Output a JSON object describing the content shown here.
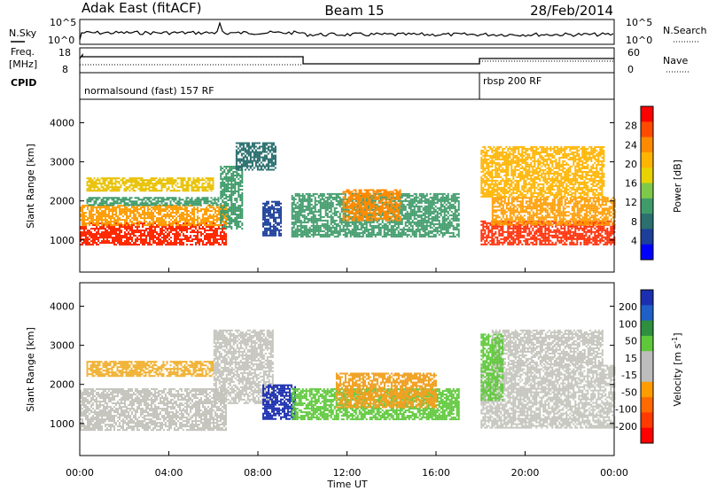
{
  "header": {
    "station": "Adak East (fitACF)",
    "beam": "Beam 15",
    "date": "28/Feb/2014"
  },
  "noise_panel": {
    "left_label": "N.Sky",
    "right_label": "N.Search",
    "tick_top": "10^5",
    "tick_bottom": "10^0"
  },
  "freq_panel": {
    "left_label_line1": "Freq.",
    "left_label_line2": "[MHz]",
    "left_tick_top": "18",
    "left_tick_bottom": "8",
    "right_label": "Nave",
    "right_tick_top": "60",
    "right_tick_bottom": "0"
  },
  "cpid_panel": {
    "label": "CPID",
    "modes": [
      {
        "start_h": 0,
        "end_h": 18,
        "text": "normalsound (fast) 157 RF"
      },
      {
        "start_h": 18,
        "end_h": 24,
        "text": "rbsp 200 RF"
      }
    ]
  },
  "chart_data": [
    {
      "type": "heatmap",
      "name": "power-panel",
      "xlabel": "",
      "ylabel": "Slant Range [km]",
      "xlim_hours": [
        0,
        24
      ],
      "ylim": [
        180,
        4600
      ],
      "yticks": [
        1000,
        2000,
        3000,
        4000
      ],
      "colorbar": {
        "label": "Power [dB]",
        "ticks": [
          "28",
          "24",
          "20",
          "16",
          "12",
          "8",
          "4"
        ],
        "colors": [
          "#ff0000",
          "#ff4a00",
          "#ff8a00",
          "#ffb400",
          "#e8d200",
          "#7fc94a",
          "#3f9b6a",
          "#2b6f6f",
          "#1c3f9a",
          "#0000ff"
        ]
      },
      "regions": [
        {
          "t0": 0.0,
          "t1": 6.6,
          "r0": 900,
          "r1": 1450,
          "color": "#ff2a00"
        },
        {
          "t0": 0.0,
          "t1": 6.6,
          "r0": 1400,
          "r1": 1900,
          "color": "#ff9c00"
        },
        {
          "t0": 0.3,
          "t1": 6.2,
          "r0": 1900,
          "r1": 2100,
          "color": "#3f9b6a"
        },
        {
          "t0": 0.3,
          "t1": 6.0,
          "r0": 2250,
          "r1": 2600,
          "color": "#e8c000"
        },
        {
          "t0": 6.3,
          "t1": 7.3,
          "r0": 1300,
          "r1": 2900,
          "color": "#3f9b6a"
        },
        {
          "t0": 7.0,
          "t1": 8.8,
          "r0": 2800,
          "r1": 3500,
          "color": "#2b6f6f"
        },
        {
          "t0": 8.2,
          "t1": 9.0,
          "r0": 1100,
          "r1": 2000,
          "color": "#1c3f9a"
        },
        {
          "t0": 9.5,
          "t1": 17.0,
          "r0": 1100,
          "r1": 2200,
          "color": "#3f9b6a"
        },
        {
          "t0": 11.8,
          "t1": 14.4,
          "r0": 1500,
          "r1": 2300,
          "color": "#ff8a00"
        },
        {
          "t0": 18.0,
          "t1": 24.0,
          "r0": 900,
          "r1": 1500,
          "color": "#ff2a00"
        },
        {
          "t0": 18.5,
          "t1": 24.0,
          "r0": 1400,
          "r1": 2100,
          "color": "#ff9c00"
        },
        {
          "t0": 18.0,
          "t1": 23.5,
          "r0": 2100,
          "r1": 3400,
          "color": "#ffb400"
        }
      ]
    },
    {
      "type": "heatmap",
      "name": "velocity-panel",
      "xlabel": "Time UT",
      "ylabel": "Slant Range [km]",
      "xlim_hours": [
        0,
        24
      ],
      "ylim": [
        180,
        4600
      ],
      "yticks": [
        1000,
        2000,
        3000,
        4000
      ],
      "xticks": [
        "00:00",
        "04:00",
        "08:00",
        "12:00",
        "16:00",
        "20:00",
        "00:00"
      ],
      "colorbar": {
        "label": "Velocity [m s",
        "label_superscript": "-1",
        "label_suffix": "]",
        "ticks": [
          "200",
          "100",
          "50",
          "15",
          "-15",
          "-50",
          "-100",
          "-200"
        ],
        "colors": [
          "#1c2fb0",
          "#1f5fc8",
          "#2e8f3f",
          "#5ec83a",
          "#bdbdbd",
          "#bdbdbd",
          "#ff9c00",
          "#ff6a00",
          "#ff3a00",
          "#ff0000"
        ]
      },
      "regions": [
        {
          "t0": 0.0,
          "t1": 6.6,
          "r0": 850,
          "r1": 1900,
          "color": "#c4c4bc"
        },
        {
          "t0": 0.3,
          "t1": 6.0,
          "r0": 2200,
          "r1": 2600,
          "color": "#f0b030"
        },
        {
          "t0": 6.0,
          "t1": 8.7,
          "r0": 1500,
          "r1": 3400,
          "color": "#c4c4bc"
        },
        {
          "t0": 8.2,
          "t1": 9.7,
          "r0": 1100,
          "r1": 2000,
          "color": "#1c2fb0"
        },
        {
          "t0": 9.5,
          "t1": 17.0,
          "r0": 1100,
          "r1": 1900,
          "color": "#5ec83a"
        },
        {
          "t0": 11.5,
          "t1": 16.0,
          "r0": 1400,
          "r1": 2300,
          "color": "#f0a020"
        },
        {
          "t0": 18.0,
          "t1": 24.0,
          "r0": 900,
          "r1": 2500,
          "color": "#c4c4bc"
        },
        {
          "t0": 18.5,
          "t1": 23.5,
          "r0": 2500,
          "r1": 3400,
          "color": "#c4c4bc"
        },
        {
          "t0": 18.0,
          "t1": 19.0,
          "r0": 1600,
          "r1": 3300,
          "color": "#5ec83a"
        }
      ]
    }
  ]
}
